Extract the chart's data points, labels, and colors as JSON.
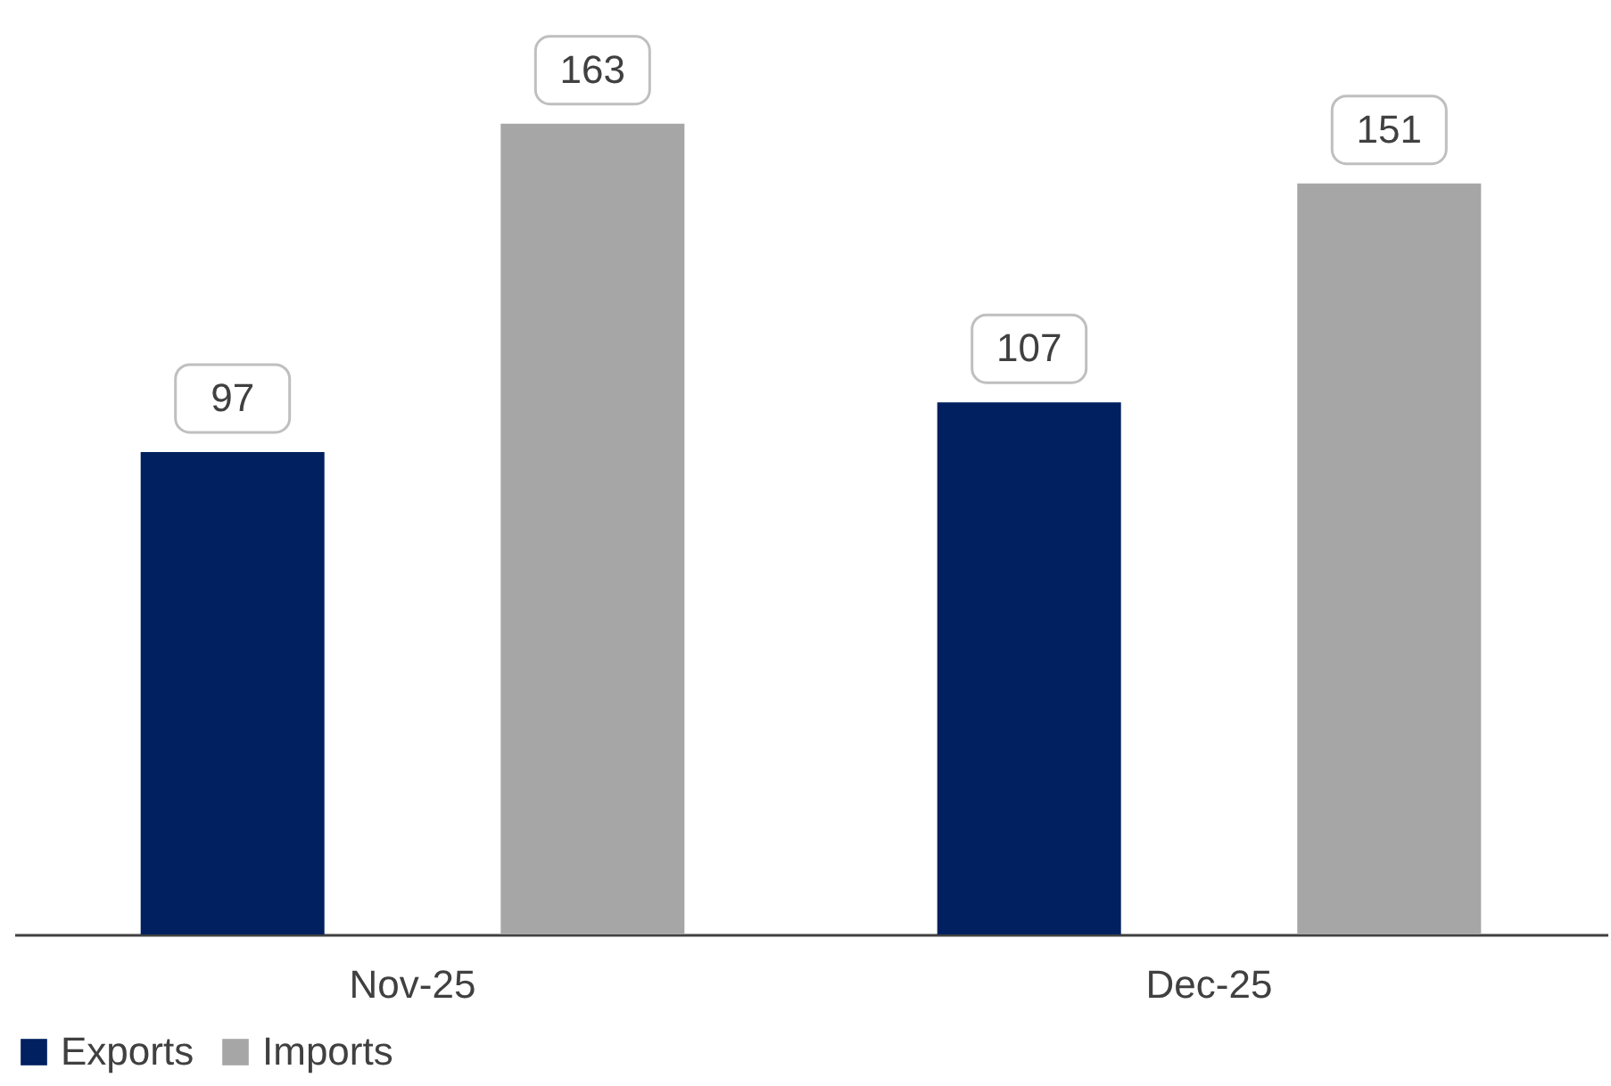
{
  "chart_data": {
    "type": "bar",
    "categories": [
      "Nov-25",
      "Dec-25"
    ],
    "series": [
      {
        "name": "Exports",
        "color": "#002060",
        "values": [
          97,
          107
        ]
      },
      {
        "name": "Imports",
        "color": "#a6a6a6",
        "values": [
          163,
          151
        ]
      }
    ],
    "data_labels": true,
    "legend": "bottom",
    "grid": false,
    "tick_labels": "x"
  }
}
